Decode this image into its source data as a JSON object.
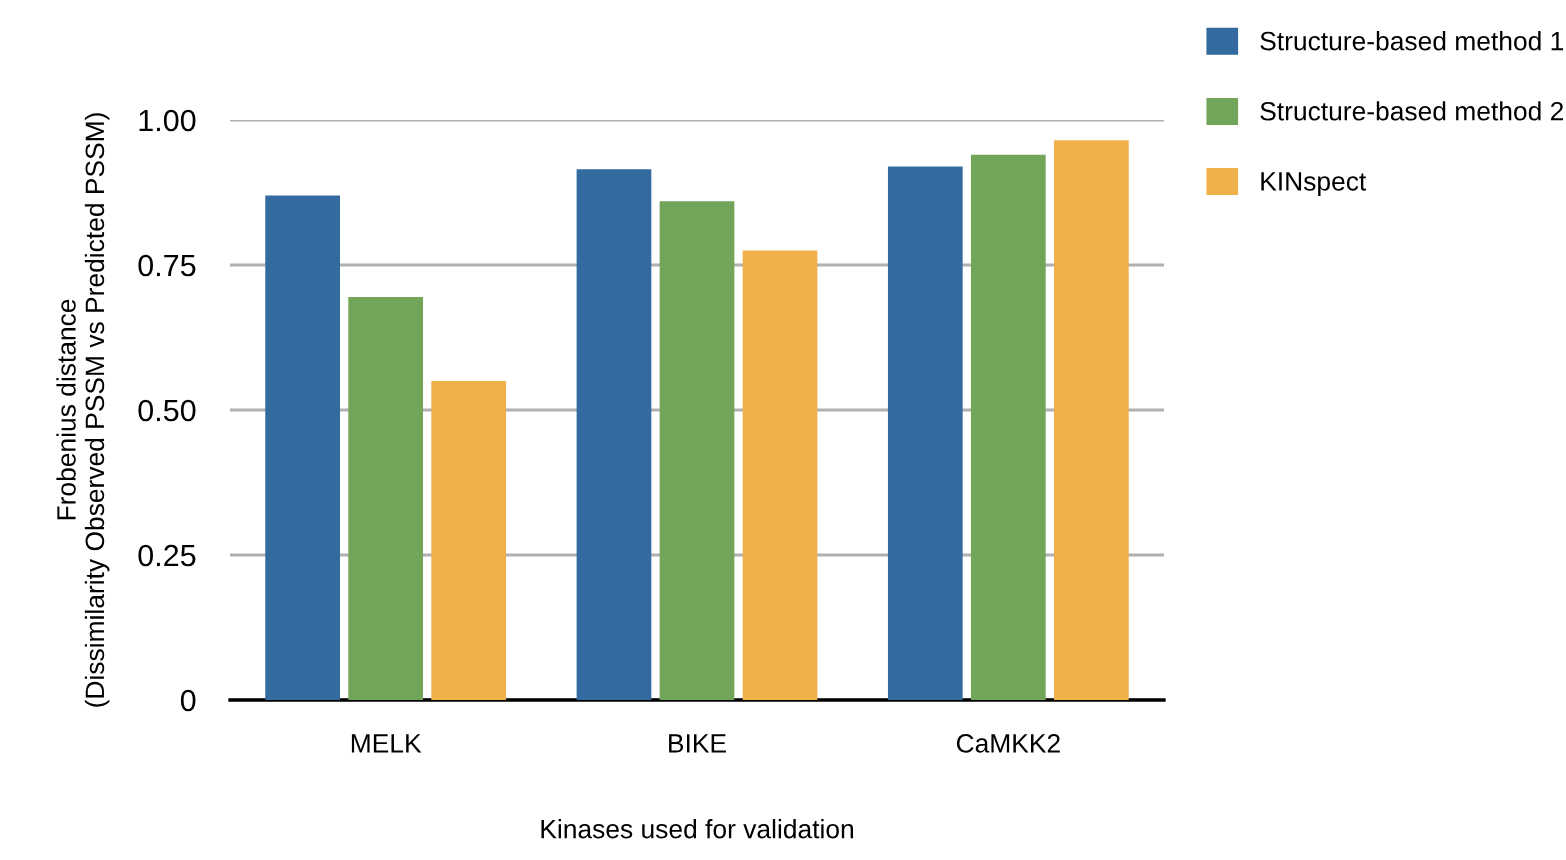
{
  "chart_data": {
    "type": "bar",
    "xlabel": "Kinases used for validation",
    "ylabel": "Frobenius distance\n(Dissimilarity Observed PSSM vs Predicted PSSM)",
    "categories": [
      "MELK",
      "BIKE",
      "CaMKK2"
    ],
    "series": [
      {
        "name": "Structure-based method 1",
        "color": "#336ba0",
        "values": [
          0.87,
          0.915,
          0.92
        ]
      },
      {
        "name": "Structure-based method 2",
        "color": "#70a55a",
        "values": [
          0.695,
          0.86,
          0.94
        ]
      },
      {
        "name": "KINspect",
        "color": "#f0b04a",
        "values": [
          0.55,
          0.775,
          0.965
        ]
      }
    ],
    "ylim": [
      0,
      1
    ],
    "yticks": [
      {
        "value": 0,
        "label": "0"
      },
      {
        "value": 0.25,
        "label": "0.25"
      },
      {
        "value": 0.5,
        "label": "0.50"
      },
      {
        "value": 0.75,
        "label": "0.75"
      },
      {
        "value": 1,
        "label": "1.00"
      }
    ],
    "grid": "y",
    "legend": "top right"
  }
}
